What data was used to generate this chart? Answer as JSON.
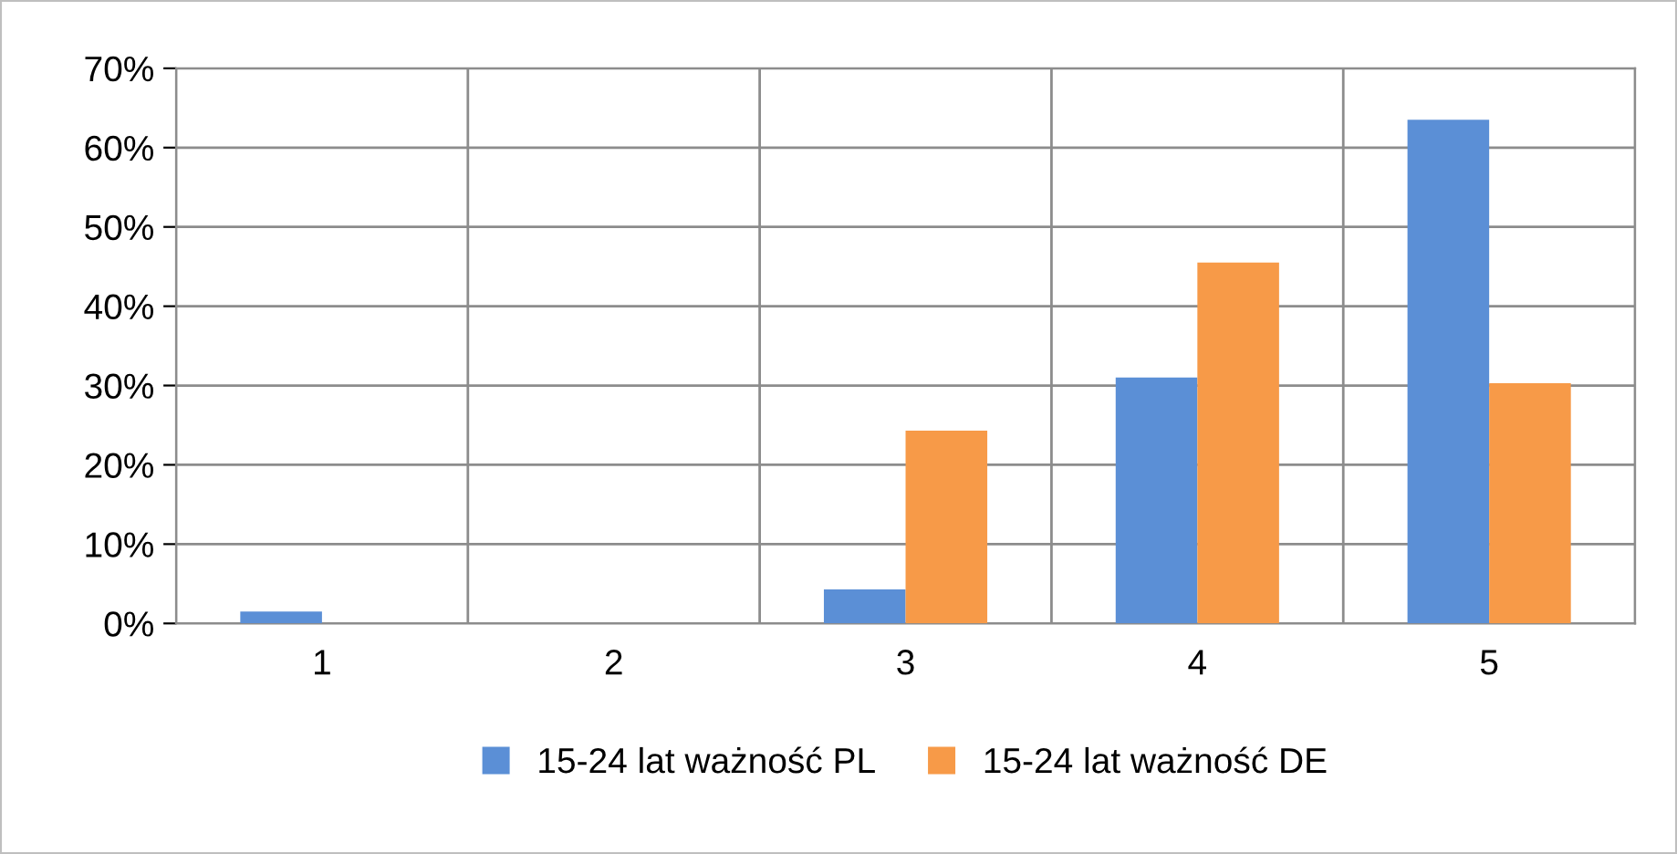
{
  "chart_data": {
    "type": "bar",
    "categories": [
      "1",
      "2",
      "3",
      "4",
      "5"
    ],
    "series": [
      {
        "name": "15-24 lat ważność PL",
        "color": "#5b8fd6",
        "values": [
          1.5,
          0,
          4.3,
          31,
          63.5
        ]
      },
      {
        "name": "15-24 lat ważność DE",
        "color": "#f79a48",
        "values": [
          0,
          0,
          24.3,
          45.5,
          30.3
        ]
      }
    ],
    "ylim": [
      0,
      70
    ],
    "yticks": [
      {
        "value": 0,
        "label": "0%"
      },
      {
        "value": 10,
        "label": "10%"
      },
      {
        "value": 20,
        "label": "20%"
      },
      {
        "value": 30,
        "label": "30%"
      },
      {
        "value": 40,
        "label": "40%"
      },
      {
        "value": 50,
        "label": "50%"
      },
      {
        "value": 60,
        "label": "60%"
      },
      {
        "value": 70,
        "label": "70%"
      }
    ],
    "grid": true,
    "legend": "bottom"
  }
}
